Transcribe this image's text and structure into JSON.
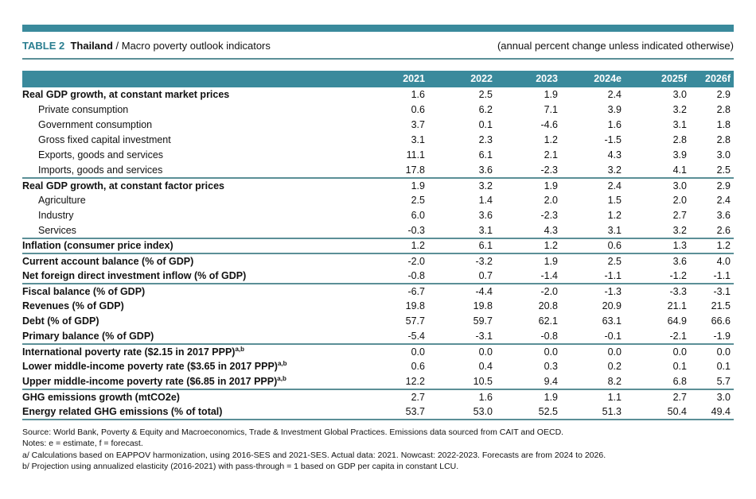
{
  "title": {
    "table_no": "TABLE 2",
    "country": "Thailand",
    "rest": " / Macro poverty outlook indicators",
    "subtitle": "(annual percent change unless indicated otherwise)"
  },
  "columns": [
    "2021",
    "2022",
    "2023",
    "2024e",
    "2025f",
    "2026f"
  ],
  "rows": [
    {
      "label": "Real GDP growth, at constant market prices",
      "bold": true,
      "values": [
        "1.6",
        "2.5",
        "1.9",
        "2.4",
        "3.0",
        "2.9"
      ]
    },
    {
      "label": "Private consumption",
      "values": [
        "0.6",
        "6.2",
        "7.1",
        "3.9",
        "3.2",
        "2.8"
      ]
    },
    {
      "label": "Government consumption",
      "values": [
        "3.7",
        "0.1",
        "-4.6",
        "1.6",
        "3.1",
        "1.8"
      ]
    },
    {
      "label": "Gross fixed capital investment",
      "values": [
        "3.1",
        "2.3",
        "1.2",
        "-1.5",
        "2.8",
        "2.8"
      ]
    },
    {
      "label": "Exports, goods and services",
      "values": [
        "11.1",
        "6.1",
        "2.1",
        "4.3",
        "3.9",
        "3.0"
      ]
    },
    {
      "label": "Imports, goods and services",
      "sep": true,
      "values": [
        "17.8",
        "3.6",
        "-2.3",
        "3.2",
        "4.1",
        "2.5"
      ]
    },
    {
      "label": "Real GDP growth, at constant factor prices",
      "bold": true,
      "values": [
        "1.9",
        "3.2",
        "1.9",
        "2.4",
        "3.0",
        "2.9"
      ]
    },
    {
      "label": "Agriculture",
      "values": [
        "2.5",
        "1.4",
        "2.0",
        "1.5",
        "2.0",
        "2.4"
      ]
    },
    {
      "label": "Industry",
      "values": [
        "6.0",
        "3.6",
        "-2.3",
        "1.2",
        "2.7",
        "3.6"
      ]
    },
    {
      "label": "Services",
      "sep": true,
      "values": [
        "-0.3",
        "3.1",
        "4.3",
        "3.1",
        "3.2",
        "2.6"
      ]
    },
    {
      "label": "Inflation (consumer price index)",
      "bold": true,
      "sep": true,
      "values": [
        "1.2",
        "6.1",
        "1.2",
        "0.6",
        "1.3",
        "1.2"
      ]
    },
    {
      "label": "Current account balance (% of GDP)",
      "bold": true,
      "values": [
        "-2.0",
        "-3.2",
        "1.9",
        "2.5",
        "3.6",
        "4.0"
      ]
    },
    {
      "label": "Net foreign direct investment inflow (% of GDP)",
      "bold": true,
      "sep": true,
      "values": [
        "-0.8",
        "0.7",
        "-1.4",
        "-1.1",
        "-1.2",
        "-1.1"
      ]
    },
    {
      "label": "Fiscal balance (% of GDP)",
      "bold": true,
      "values": [
        "-6.7",
        "-4.4",
        "-2.0",
        "-1.3",
        "-3.3",
        "-3.1"
      ]
    },
    {
      "label": "Revenues (% of GDP)",
      "bold": true,
      "values": [
        "19.8",
        "19.8",
        "20.8",
        "20.9",
        "21.1",
        "21.5"
      ]
    },
    {
      "label": "Debt (% of GDP)",
      "bold": true,
      "values": [
        "57.7",
        "59.7",
        "62.1",
        "63.1",
        "64.9",
        "66.6"
      ]
    },
    {
      "label": "Primary balance (% of GDP)",
      "bold": true,
      "sep": true,
      "values": [
        "-5.4",
        "-3.1",
        "-0.8",
        "-0.1",
        "-2.1",
        "-1.9"
      ]
    },
    {
      "label": "International poverty rate ($2.15 in 2017 PPP)",
      "sup": "a,b",
      "bold": true,
      "values": [
        "0.0",
        "0.0",
        "0.0",
        "0.0",
        "0.0",
        "0.0"
      ]
    },
    {
      "label": "Lower middle-income poverty rate ($3.65 in 2017 PPP)",
      "sup": "a,b",
      "bold": true,
      "values": [
        "0.6",
        "0.4",
        "0.3",
        "0.2",
        "0.1",
        "0.1"
      ]
    },
    {
      "label": "Upper middle-income poverty rate ($6.85 in 2017 PPP)",
      "sup": "a,b",
      "bold": true,
      "sep": true,
      "values": [
        "12.2",
        "10.5",
        "9.4",
        "8.2",
        "6.8",
        "5.7"
      ]
    },
    {
      "label": "GHG emissions growth (mtCO2e)",
      "bold": true,
      "values": [
        "2.7",
        "1.6",
        "1.9",
        "1.1",
        "2.7",
        "3.0"
      ]
    },
    {
      "label": "Energy related GHG emissions (% of total)",
      "bold": true,
      "sep": true,
      "values": [
        "53.7",
        "53.0",
        "52.5",
        "51.3",
        "50.4",
        "49.4"
      ]
    }
  ],
  "notes": [
    "Source: World Bank, Poverty & Equity and Macroeconomics, Trade & Investment Global Practices. Emissions data sourced from CAIT and OECD.",
    "Notes: e = estimate, f = forecast.",
    "a/ Calculations based on EAPPOV harmonization, using 2016-SES and 2021-SES. Actual data: 2021. Nowcast: 2022-2023. Forecasts are from 2024 to 2026.",
    "b/ Projection using annualized elasticity (2016-2021) with pass-through = 1 based on GDP per capita in constant LCU."
  ]
}
